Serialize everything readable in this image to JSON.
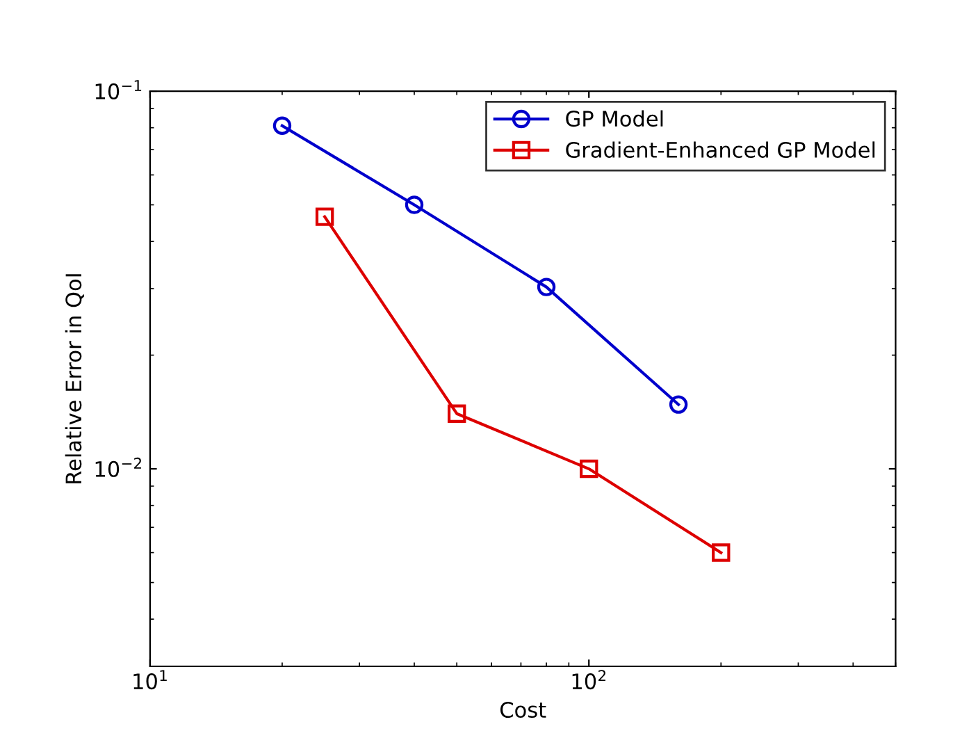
{
  "chart_data": {
    "type": "line",
    "xlabel": "Cost",
    "ylabel": "Relative Error in QoI",
    "log": "xy",
    "xlim": [
      10,
      500
    ],
    "ylim": [
      0.003,
      0.1
    ],
    "xticks": [
      {
        "value": 10,
        "label": "10$^{1}$"
      },
      {
        "value": 100,
        "label": "10$^{2}$"
      }
    ],
    "yticks": [
      {
        "value": 0.01,
        "label": "10$^{−2}$"
      },
      {
        "value": 0.1,
        "label": "10$^{−1}$"
      }
    ],
    "grid": false,
    "legend": "top right",
    "line_style": "solid",
    "series": [
      {
        "name": "GP Model",
        "color": "#0000cc",
        "marker": "circle",
        "x": [
          20,
          40,
          80,
          160
        ],
        "values": [
          0.081,
          0.05,
          0.0303,
          0.0148
        ]
      },
      {
        "name": "Gradient-Enhanced GP Model",
        "color": "#dd0000",
        "marker": "square",
        "x": [
          25,
          50,
          100,
          200
        ],
        "values": [
          0.0465,
          0.014,
          0.01,
          0.006
        ]
      }
    ]
  }
}
